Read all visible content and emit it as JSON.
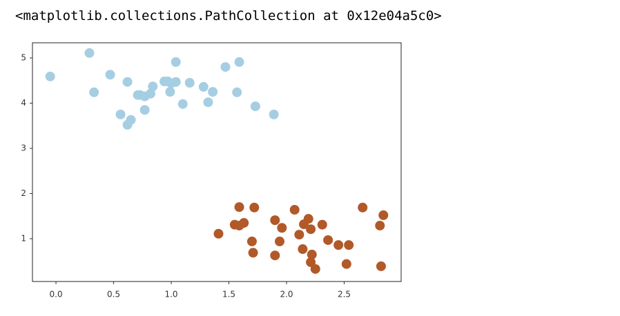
{
  "output_text": "<matplotlib.collections.PathCollection at 0x12e04a5c0>",
  "chart_data": {
    "type": "scatter",
    "xlim": [
      -0.204,
      2.994
    ],
    "ylim": [
      0.053,
      5.336
    ],
    "xticks": [
      {
        "value": 0,
        "label": "0.0"
      },
      0.5,
      {
        "value": 1,
        "label": "1.0"
      },
      1.5,
      {
        "value": 2,
        "label": "2.0"
      },
      2.5
    ],
    "yticks": [
      1,
      2,
      3,
      4,
      5
    ],
    "grid": false,
    "series": [
      {
        "color": "#a6cee3",
        "x": [
          -0.05,
          0.29,
          0.33,
          0.47,
          0.62,
          0.56,
          0.62,
          0.65,
          0.71,
          0.73,
          0.77,
          0.77,
          0.82,
          0.84,
          0.94,
          0.97,
          1.0,
          1.04,
          0.99,
          1.04,
          1.1,
          1.16,
          1.28,
          1.36,
          1.32,
          1.47,
          1.59,
          1.57,
          1.73,
          1.89
        ],
        "y": [
          4.59,
          5.11,
          4.24,
          4.63,
          4.47,
          3.75,
          3.52,
          3.63,
          4.18,
          4.18,
          4.15,
          3.85,
          4.21,
          4.37,
          4.48,
          4.48,
          4.44,
          4.47,
          4.25,
          4.91,
          3.98,
          4.45,
          4.36,
          4.25,
          4.02,
          4.8,
          4.91,
          4.24,
          3.93,
          3.75
        ]
      },
      {
        "color": "#b15928",
        "x": [
          1.41,
          1.55,
          1.59,
          1.59,
          1.63,
          1.72,
          1.7,
          1.71,
          1.9,
          1.9,
          1.94,
          1.96,
          2.07,
          2.11,
          2.14,
          2.15,
          2.19,
          2.21,
          2.22,
          2.21,
          2.25,
          2.31,
          2.36,
          2.45,
          2.52,
          2.54,
          2.66,
          2.81,
          2.84,
          2.82
        ],
        "y": [
          1.11,
          1.31,
          1.7,
          1.29,
          1.35,
          1.69,
          0.94,
          0.69,
          1.41,
          0.63,
          0.94,
          1.24,
          1.64,
          1.09,
          0.77,
          1.32,
          1.44,
          1.21,
          0.65,
          0.48,
          0.33,
          1.31,
          0.97,
          0.86,
          0.44,
          0.86,
          1.69,
          1.29,
          1.52,
          0.39
        ]
      }
    ]
  }
}
